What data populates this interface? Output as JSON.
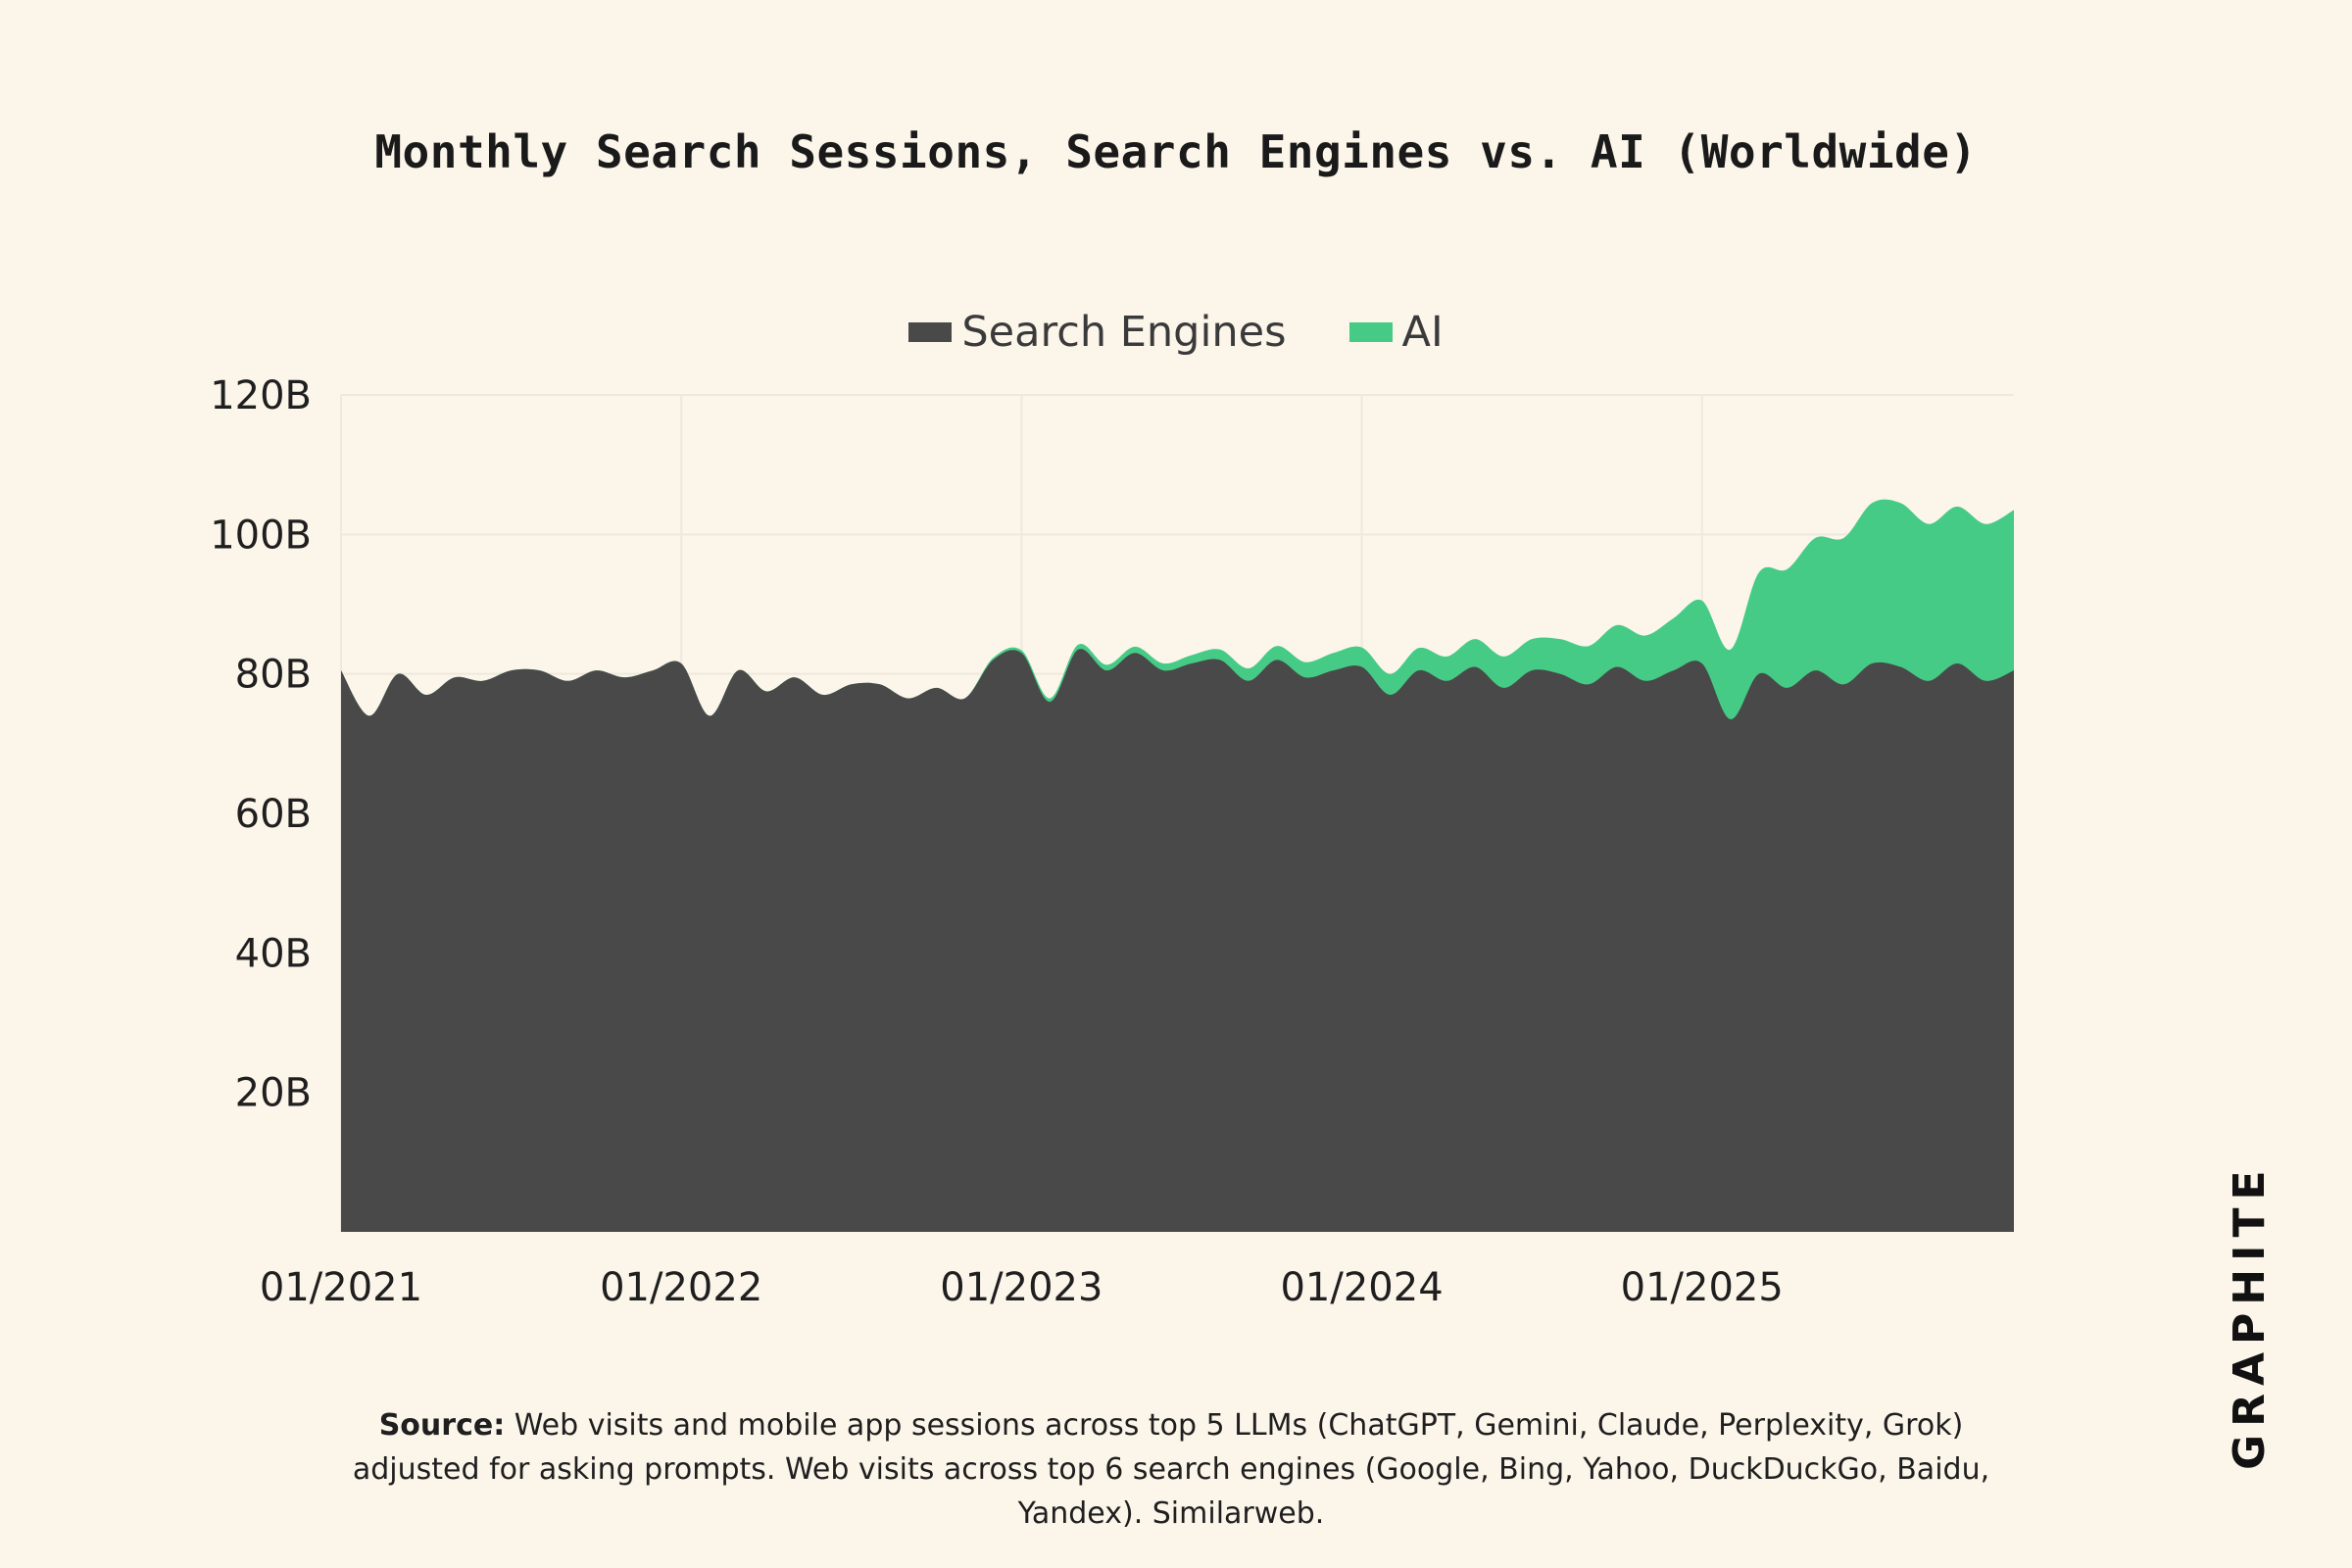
{
  "title": "Monthly Search Sessions, Search Engines vs. AI (Worldwide)",
  "source_label": "Source:",
  "source_text": "Web visits and mobile app sessions across top 5 LLMs (ChatGPT, Gemini, Claude, Perplexity, Grok) adjusted for asking prompts. Web visits across top 6 search engines (Google, Bing, Yahoo, DuckDuckGo, Baidu, Yandex). Similarweb.",
  "logo": "GRAPHITE",
  "colors": {
    "background": "#fbf5ea",
    "search": "#494949",
    "ai": "#45cb85"
  },
  "chart_data": {
    "type": "area",
    "stacked": true,
    "title": "Monthly Search Sessions, Search Engines vs. AI (Worldwide)",
    "legend": [
      "Search Engines",
      "AI"
    ],
    "legend_position": "top",
    "grid": true,
    "ylim": [
      0,
      120
    ],
    "ytick_values": [
      20,
      40,
      60,
      80,
      100,
      120
    ],
    "ytick_labels": [
      "20B",
      "40B",
      "60B",
      "80B",
      "100B",
      "120B"
    ],
    "xtick_labels": [
      "01/2021",
      "01/2022",
      "01/2023",
      "01/2024",
      "01/2025"
    ],
    "x": [
      "01/2021",
      "02/2021",
      "03/2021",
      "04/2021",
      "05/2021",
      "06/2021",
      "07/2021",
      "08/2021",
      "09/2021",
      "10/2021",
      "11/2021",
      "12/2021",
      "01/2022",
      "02/2022",
      "03/2022",
      "04/2022",
      "05/2022",
      "06/2022",
      "07/2022",
      "08/2022",
      "09/2022",
      "10/2022",
      "11/2022",
      "12/2022",
      "01/2023",
      "02/2023",
      "03/2023",
      "04/2023",
      "05/2023",
      "06/2023",
      "07/2023",
      "08/2023",
      "09/2023",
      "10/2023",
      "11/2023",
      "12/2023",
      "01/2024",
      "02/2024",
      "03/2024",
      "04/2024",
      "05/2024",
      "06/2024",
      "07/2024",
      "08/2024",
      "09/2024",
      "10/2024",
      "11/2024",
      "12/2024",
      "01/2025",
      "02/2025",
      "03/2025",
      "04/2025",
      "05/2025",
      "06/2025",
      "07/2025",
      "08/2025",
      "09/2025",
      "10/2025",
      "11/2025",
      "12/2025"
    ],
    "series": [
      {
        "name": "Search Engines",
        "values": [
          80.5,
          74,
          80,
          77,
          79.5,
          79,
          80.5,
          80.5,
          79,
          80.5,
          79.5,
          80.5,
          81.5,
          74,
          80.5,
          77.5,
          79.5,
          77,
          78.5,
          78.5,
          76.5,
          78,
          76.5,
          82,
          83,
          76,
          83.5,
          80.5,
          83,
          80.5,
          81.5,
          82,
          79,
          82,
          79.5,
          80.5,
          81,
          77,
          80.5,
          79,
          81,
          78,
          80.5,
          80,
          78.5,
          81,
          79,
          80.5,
          81.5,
          73.5,
          80,
          78,
          80.5,
          78.5,
          81.5,
          81,
          79,
          81.5,
          79,
          80.5
        ]
      },
      {
        "name": "AI",
        "values": [
          0,
          0,
          0,
          0,
          0,
          0,
          0,
          0,
          0,
          0,
          0,
          0,
          0,
          0,
          0,
          0,
          0,
          0,
          0,
          0,
          0,
          0,
          0,
          0.3,
          0.4,
          0.5,
          0.7,
          0.8,
          0.9,
          1,
          1.2,
          1.5,
          1.8,
          2,
          2.2,
          2.5,
          2.8,
          3,
          3.2,
          3.5,
          4,
          4.5,
          4.5,
          5,
          5.5,
          6,
          6.5,
          7.5,
          9,
          10,
          14.5,
          17,
          19,
          21,
          23,
          23.5,
          22.5,
          22.5,
          22.5,
          23
        ]
      }
    ]
  }
}
